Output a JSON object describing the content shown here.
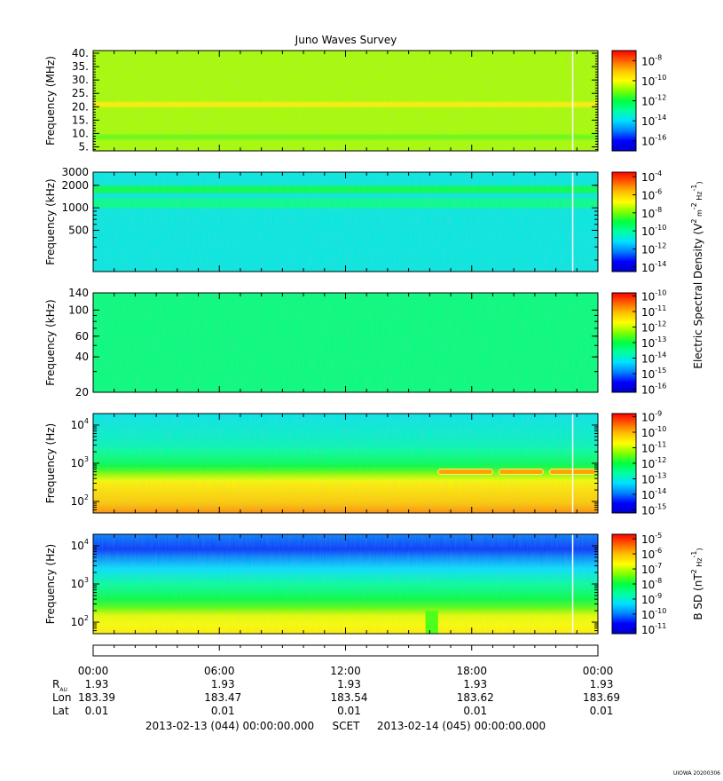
{
  "title": "Juno Waves Survey",
  "footer": {
    "start": "2013-02-13 (044) 00:00:00.000",
    "scet": "SCET",
    "end": "2013-02-14 (045) 00:00:00.000",
    "stamp": "UIOWA 20200306"
  },
  "eph_labels": [
    "R_AU",
    "Lon",
    "Lat"
  ],
  "x_axis": {
    "ticks": [
      "00:00",
      "06:00",
      "12:00",
      "18:00",
      "00:00"
    ],
    "r_au": [
      "1.93",
      "1.93",
      "1.93",
      "1.93",
      "1.93"
    ],
    "lon": [
      "183.39",
      "183.47",
      "183.54",
      "183.62",
      "183.69"
    ],
    "lat": [
      "0.01",
      "0.01",
      "0.01",
      "0.01",
      "0.01"
    ]
  },
  "colors": {
    "colormap": [
      "#0000cc",
      "#0000ff",
      "#0080ff",
      "#00e0ff",
      "#00ffa0",
      "#00ff40",
      "#80ff00",
      "#ffff00",
      "#ffc000",
      "#ff6000",
      "#ff0000"
    ]
  },
  "chart_data": [
    {
      "type": "heatmap",
      "ylabel": "Frequency (MHz)",
      "yscale": "linear",
      "y_ticks": [
        "40.",
        "35.",
        "30.",
        "25.",
        "20.",
        "15.",
        "10.",
        "5."
      ],
      "y_tick_values": [
        40,
        35,
        30,
        25,
        20,
        15,
        10,
        5
      ],
      "ylim": [
        3.5,
        41
      ],
      "colorbar_label": "",
      "colorbar_ticks": [
        -8,
        -10,
        -12,
        -14,
        -16
      ],
      "colorbar_range": [
        -17,
        -7
      ],
      "background_level": 0.63,
      "bands": [
        {
          "freq": 21,
          "width": 0.8,
          "level": 0.72
        },
        {
          "freq": 8.5,
          "width": 0.7,
          "level": 0.58
        }
      ],
      "gap_time_hours": 22.8
    },
    {
      "type": "heatmap",
      "ylabel": "Frequency (kHz)",
      "yscale": "log",
      "y_ticks": [
        "3000",
        "2000",
        "1000",
        "500"
      ],
      "y_tick_values": [
        3000,
        2000,
        1000,
        500
      ],
      "ylim": [
        140,
        3000
      ],
      "colorbar_label": "Electric Spectral Density (V^2 m^-2 Hz^-1)",
      "colorbar_ticks": [
        -4,
        -6,
        -8,
        -10,
        -12,
        -14
      ],
      "colorbar_range": [
        -14.5,
        -3.5
      ],
      "background_level": 0.33,
      "bands": [
        {
          "freq": 1800,
          "width": 0.05,
          "level": 0.48
        },
        {
          "freq": 1150,
          "width": 0.07,
          "level": 0.42
        }
      ],
      "gap_time_hours": 22.8
    },
    {
      "type": "heatmap",
      "ylabel": "Frequency (kHz)",
      "yscale": "log",
      "y_ticks": [
        "140",
        "100",
        "60",
        "40",
        "20"
      ],
      "y_tick_values": [
        140,
        100,
        60,
        40,
        20
      ],
      "ylim": [
        20,
        140
      ],
      "colorbar_label": "",
      "colorbar_ticks": [
        -10,
        -11,
        -12,
        -13,
        -14,
        -15,
        -16
      ],
      "colorbar_range": [
        -16.2,
        -9.8
      ],
      "background_level": 0.44,
      "bands": []
    },
    {
      "type": "heatmap",
      "ylabel": "Frequency (Hz)",
      "yscale": "log",
      "y_ticks": [
        "10^4",
        "10^3",
        "10^2"
      ],
      "y_tick_values": [
        10000,
        1000,
        100
      ],
      "ylim": [
        50,
        20000
      ],
      "colorbar_label": "",
      "colorbar_ticks": [
        -9,
        -10,
        -11,
        -12,
        -13,
        -14,
        -15
      ],
      "colorbar_range": [
        -15.2,
        -8.8
      ],
      "profile": [
        [
          50,
          0.85
        ],
        [
          100,
          0.78
        ],
        [
          300,
          0.72
        ],
        [
          500,
          0.62
        ],
        [
          650,
          0.55
        ],
        [
          1000,
          0.47
        ],
        [
          3000,
          0.37
        ],
        [
          20000,
          0.32
        ]
      ],
      "line_segments": [
        {
          "start_hours": 16.4,
          "end_hours": 19.0,
          "freq": 600
        },
        {
          "start_hours": 19.3,
          "end_hours": 21.4,
          "freq": 600
        },
        {
          "start_hours": 21.7,
          "end_hours": 23.9,
          "freq": 600
        }
      ],
      "gap_time_hours": 22.8
    },
    {
      "type": "heatmap",
      "ylabel": "Frequency (Hz)",
      "yscale": "log",
      "y_ticks": [
        "10^4",
        "10^3",
        "10^2"
      ],
      "y_tick_values": [
        10000,
        1000,
        100
      ],
      "ylim": [
        50,
        20000
      ],
      "colorbar_label": "B SD (nT^2 Hz^-1)",
      "colorbar_ticks": [
        -5,
        -6,
        -7,
        -8,
        -9,
        -10,
        -11
      ],
      "colorbar_range": [
        -11.3,
        -4.7
      ],
      "profile": [
        [
          50,
          0.72
        ],
        [
          150,
          0.68
        ],
        [
          250,
          0.56
        ],
        [
          500,
          0.47
        ],
        [
          1000,
          0.4
        ],
        [
          3000,
          0.28
        ],
        [
          8000,
          0.14
        ],
        [
          20000,
          0.2
        ]
      ],
      "dip": {
        "start_hours": 15.8,
        "end_hours": 16.4,
        "min_freq": 50,
        "max_freq": 200
      },
      "gap_time_hours": 22.8
    }
  ]
}
